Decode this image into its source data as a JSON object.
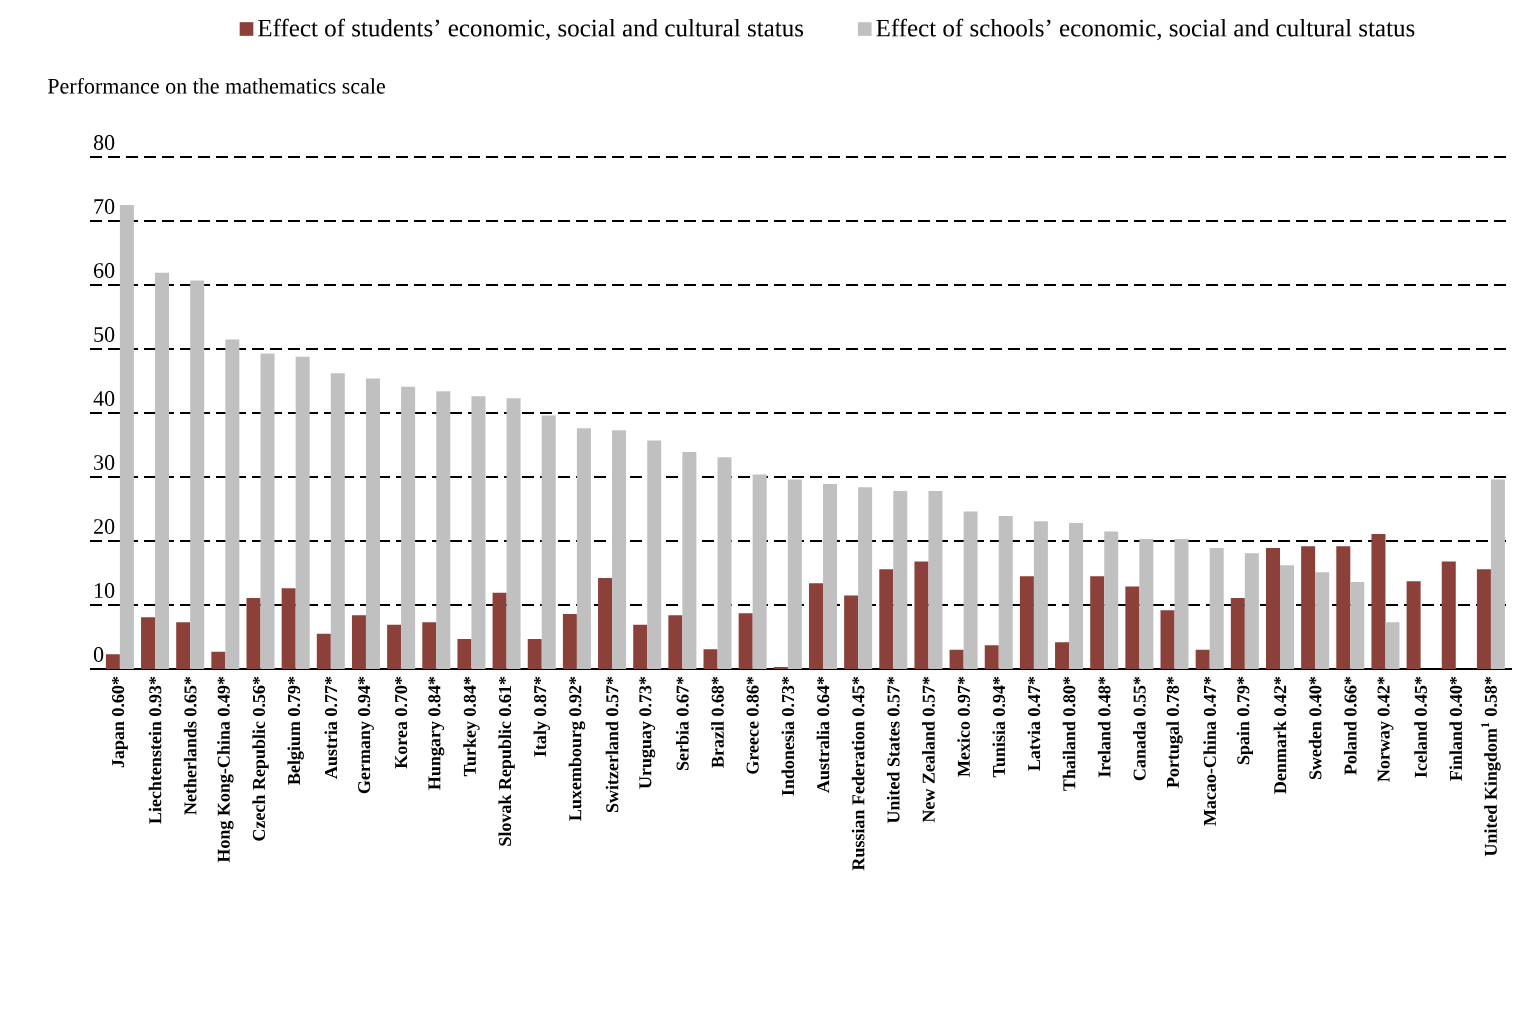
{
  "chart_data": {
    "type": "bar",
    "ylabel": "Performance on the mathematics scale",
    "categories": [
      "Japan 0.60*",
      "Liechtenstein 0.93*",
      "Netherlands 0.65*",
      "Hong Kong-China 0.49*",
      "Czech Republic 0.56*",
      "Belgium 0.79*",
      "Austria 0.77*",
      "Germany 0.94*",
      "Korea 0.70*",
      "Hungary 0.84*",
      "Turkey 0.84*",
      "Slovak Republic 0.61*",
      "Italy 0.87*",
      "Luxembourg 0.92*",
      "Switzerland 0.57*",
      "Uruguay 0.73*",
      "Serbia 0.67*",
      "Brazil 0.68*",
      "Greece 0.86*",
      "Indonesia 0.73*",
      "Australia 0.64*",
      "Russian Federation 0.45*",
      "United States 0.57*",
      "New Zealand 0.57*",
      "Mexico 0.97*",
      "Tunisia 0.94*",
      "Latvia 0.47*",
      "Thailand 0.80*",
      "Ireland 0.48*",
      "Canada 0.55*",
      "Portugal 0.78*",
      "Macao-China 0.47*",
      "Spain 0.79*",
      "Denmark 0.42*",
      "Sweden 0.40*",
      "Poland 0.66*",
      "Norway 0.42*",
      "Iceland 0.45*",
      "Finland 0.40*",
      "United Kingdom$^{1}$ 0.58*"
    ],
    "series": [
      {
        "name": "Effect of students’ economic, social and cultural status",
        "color": "#8b4039",
        "values": [
          2.3,
          8.1,
          7.3,
          2.7,
          11.1,
          12.6,
          5.5,
          8.4,
          6.9,
          7.3,
          4.7,
          11.9,
          4.7,
          8.6,
          14.2,
          6.9,
          8.4,
          3.1,
          8.7,
          0.3,
          13.4,
          11.5,
          15.6,
          16.8,
          3.0,
          3.7,
          14.5,
          4.2,
          14.5,
          12.9,
          9.2,
          3.0,
          11.1,
          18.9,
          19.2,
          19.2,
          21.1,
          13.7,
          16.8,
          15.6
        ]
      },
      {
        "name": "Effect of schools’ economic, social and cultural status",
        "color": "#c0c0c0",
        "values": [
          72.5,
          61.9,
          60.7,
          51.5,
          49.3,
          48.8,
          46.2,
          45.4,
          44.1,
          43.4,
          42.6,
          42.3,
          39.6,
          37.6,
          37.3,
          35.7,
          33.9,
          33.1,
          30.4,
          29.6,
          28.9,
          28.4,
          27.8,
          27.8,
          24.6,
          23.9,
          23.1,
          22.8,
          21.5,
          20.3,
          20.3,
          18.9,
          18.1,
          16.2,
          15.1,
          13.6,
          7.3,
          null,
          null,
          29.6
        ]
      }
    ],
    "ylim": [
      0,
      80
    ],
    "yticks": [
      0,
      10,
      20,
      30,
      40,
      50,
      60,
      70,
      80
    ],
    "grid": "y",
    "legend": "top"
  }
}
